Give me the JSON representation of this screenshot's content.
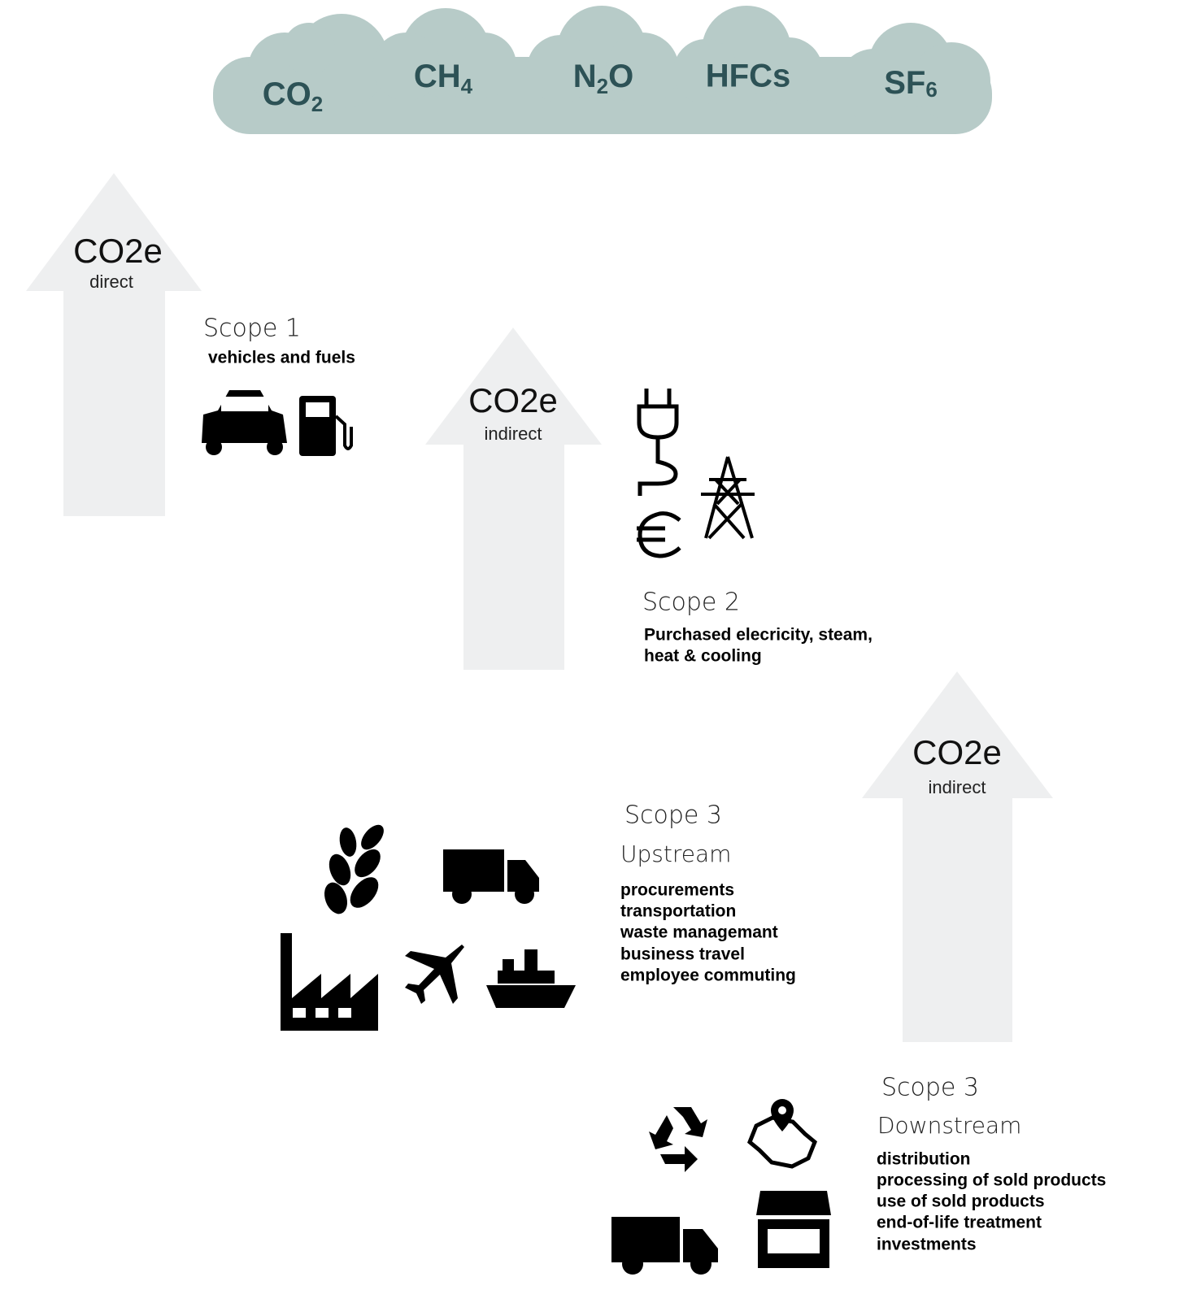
{
  "gases": [
    {
      "base": "CO",
      "sub": "2"
    },
    {
      "base": "CH",
      "sub": "4"
    },
    {
      "base": "N",
      "sub": "2",
      "rest": "O"
    },
    {
      "base": "HFCs"
    },
    {
      "base": "SF",
      "sub": "6"
    }
  ],
  "arrows": [
    {
      "label": "CO2e",
      "sublabel": "direct"
    },
    {
      "label": "CO2e",
      "sublabel": "indirect"
    },
    {
      "label": "CO2e",
      "sublabel": "indirect"
    }
  ],
  "scopes": [
    {
      "title": "Scope 1",
      "items": [
        "vehicles and fuels"
      ]
    },
    {
      "title": "Scope 2",
      "items": [
        "Purchased elecricity, steam,",
        "heat & cooling"
      ]
    },
    {
      "title": "Scope 3",
      "subtitle": "Upstream",
      "items": [
        "procurements",
        "transportation",
        "waste managemant",
        "business travel",
        "employee commuting"
      ]
    },
    {
      "title": "Scope 3",
      "subtitle": "Downstream",
      "items": [
        "distribution",
        "processing of sold products",
        "use of sold products",
        "end-of-life treatment",
        "investments"
      ]
    }
  ]
}
